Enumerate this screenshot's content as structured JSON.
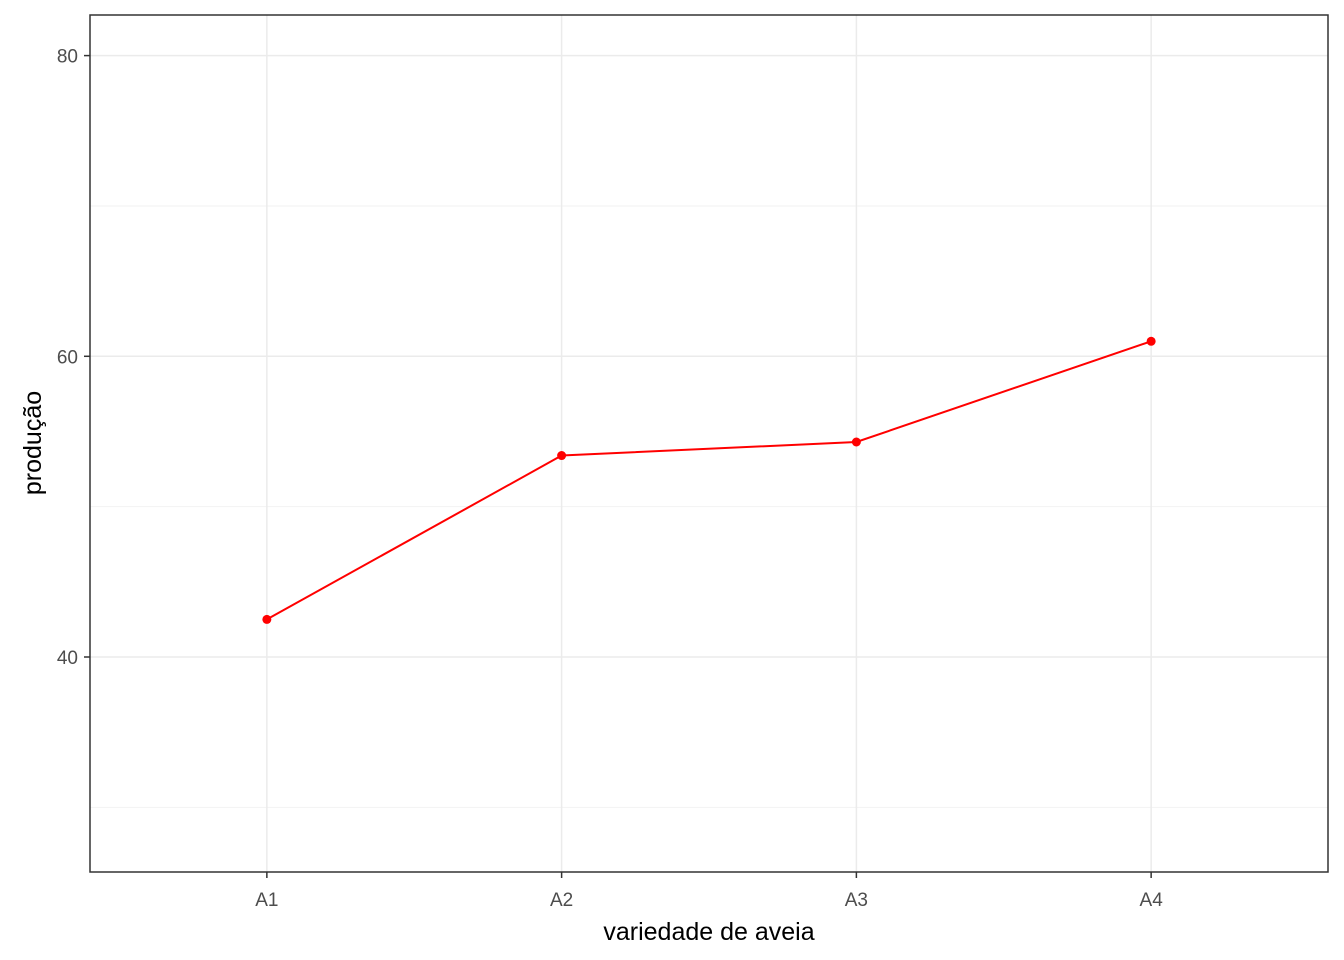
{
  "chart_data": {
    "type": "line",
    "title": "",
    "xlabel": "variedade de aveia",
    "ylabel": "produção",
    "categories": [
      "A1",
      "A2",
      "A3",
      "A4"
    ],
    "series": [
      {
        "values": [
          42.5,
          53.4,
          54.3,
          61.0
        ],
        "color": "#ff0000"
      }
    ],
    "ylim": [
      25.7,
      82.7
    ],
    "yticks": [
      40,
      60,
      80
    ],
    "ytick_labels": [
      "40",
      "60",
      "80"
    ],
    "y_minor_gridlines": [
      30,
      50,
      70
    ],
    "grid": true,
    "legend": "none"
  }
}
